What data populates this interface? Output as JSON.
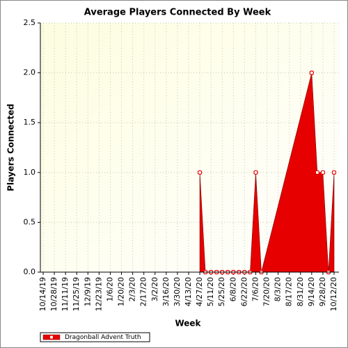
{
  "chart_data": {
    "type": "area",
    "title": "Average Players Connected By Week",
    "x_label": "Week",
    "y_label": "Players Connected",
    "x": [
      "4/27/20",
      "5/4/20",
      "5/11/20",
      "5/18/20",
      "5/25/20",
      "6/1/20",
      "6/8/20",
      "6/15/20",
      "6/22/20",
      "6/29/20",
      "7/6/20",
      "7/13/20",
      "9/14/20",
      "9/21/20",
      "9/28/20",
      "10/5/20",
      "10/12/20"
    ],
    "series": [
      {
        "name": "Dragonball Advent Truth",
        "color": "#e60000",
        "values": [
          1,
          0,
          0,
          0,
          0,
          0,
          0,
          0,
          0,
          0,
          1,
          0,
          2,
          1,
          1,
          0,
          1
        ]
      }
    ],
    "xlim": [
      "10/14/19",
      "10/12/20"
    ],
    "xticks": [
      "10/14/19",
      "10/28/19",
      "11/11/19",
      "11/25/19",
      "12/9/19",
      "12/23/19",
      "1/6/20",
      "1/20/20",
      "2/3/20",
      "2/17/20",
      "3/2/20",
      "3/16/20",
      "3/30/20",
      "4/13/20",
      "4/27/20",
      "5/11/20",
      "5/25/20",
      "6/8/20",
      "6/22/20",
      "7/6/20",
      "7/20/20",
      "8/3/20",
      "8/17/20",
      "8/31/20",
      "9/14/20",
      "9/28/20",
      "10/12/20"
    ],
    "ylim": [
      0,
      2.5
    ],
    "yticks": [
      {
        "value": 0,
        "label": "0.0"
      },
      0.5,
      {
        "value": 1,
        "label": "1.0"
      },
      1.5,
      {
        "value": 2,
        "label": "2.0"
      },
      2.5
    ],
    "grid": true,
    "legend": "bottom-left"
  }
}
